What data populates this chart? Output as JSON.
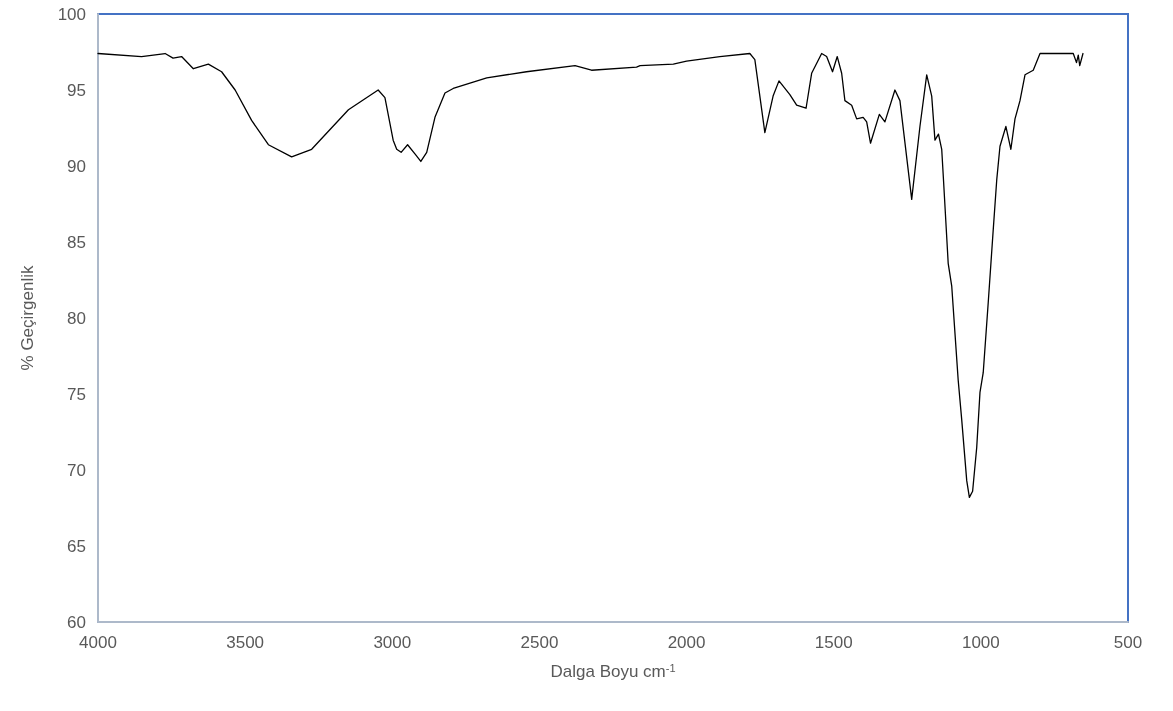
{
  "chart_data": {
    "type": "line",
    "xlabel": "Dalga Boyu cm$^{-1}$",
    "ylabel": "% Geçirgenlik",
    "xlim": [
      4000,
      500
    ],
    "xticks": [
      4000,
      3500,
      3000,
      2500,
      2000,
      1500,
      1000,
      500
    ],
    "ylim": [
      60,
      100
    ],
    "yticks": [
      60,
      65,
      70,
      75,
      80,
      85,
      90,
      95,
      100
    ],
    "grid": false,
    "marker": "none",
    "line_style": "solid",
    "series": [
      {
        "color": "#000000",
        "x": [
          4000,
          3852,
          3772,
          3745,
          3716,
          3676,
          3625,
          3580,
          3534,
          3478,
          3421,
          3342,
          3274,
          3149,
          3048,
          3025,
          2997,
          2985,
          2970,
          2948,
          2923,
          2903,
          2883,
          2855,
          2821,
          2793,
          2679,
          2544,
          2379,
          2323,
          2170,
          2158,
          2045,
          2000,
          1887,
          1785,
          1768,
          1734,
          1706,
          1686,
          1649,
          1626,
          1594,
          1575,
          1541,
          1524,
          1504,
          1488,
          1473,
          1462,
          1439,
          1422,
          1400,
          1388,
          1375,
          1345,
          1326,
          1292,
          1275,
          1235,
          1207,
          1184,
          1167,
          1156,
          1144,
          1133,
          1127,
          1111,
          1099,
          1077,
          1065,
          1048,
          1039,
          1028,
          1014,
          1003,
          992,
          975,
          958,
          946,
          935,
          915,
          898,
          884,
          867,
          850,
          822,
          799,
          720,
          686,
          675,
          669,
          664,
          653
        ],
        "values": [
          97.4,
          97.2,
          97.4,
          97.1,
          97.2,
          96.4,
          96.7,
          96.2,
          95.0,
          93.0,
          91.4,
          90.6,
          91.1,
          93.7,
          95.0,
          94.5,
          91.7,
          91.1,
          90.9,
          91.4,
          90.8,
          90.3,
          90.9,
          93.2,
          94.8,
          95.1,
          95.8,
          96.2,
          96.6,
          96.3,
          96.5,
          96.6,
          96.7,
          96.9,
          97.2,
          97.4,
          97.0,
          92.2,
          94.6,
          95.6,
          94.7,
          94.0,
          93.8,
          96.1,
          97.4,
          97.2,
          96.2,
          97.2,
          96.1,
          94.3,
          94.0,
          93.1,
          93.2,
          92.9,
          91.5,
          93.4,
          92.9,
          95.0,
          94.3,
          87.8,
          92.6,
          96.0,
          94.6,
          91.7,
          92.1,
          91.1,
          89.1,
          83.6,
          82.1,
          75.9,
          73.3,
          69.3,
          68.2,
          68.6,
          71.5,
          75.1,
          76.4,
          81.0,
          85.8,
          89.1,
          91.3,
          92.6,
          91.1,
          93.1,
          94.3,
          96.0,
          96.3,
          97.4,
          97.4,
          97.4,
          96.8,
          97.3,
          96.6,
          97.4
        ]
      }
    ]
  }
}
